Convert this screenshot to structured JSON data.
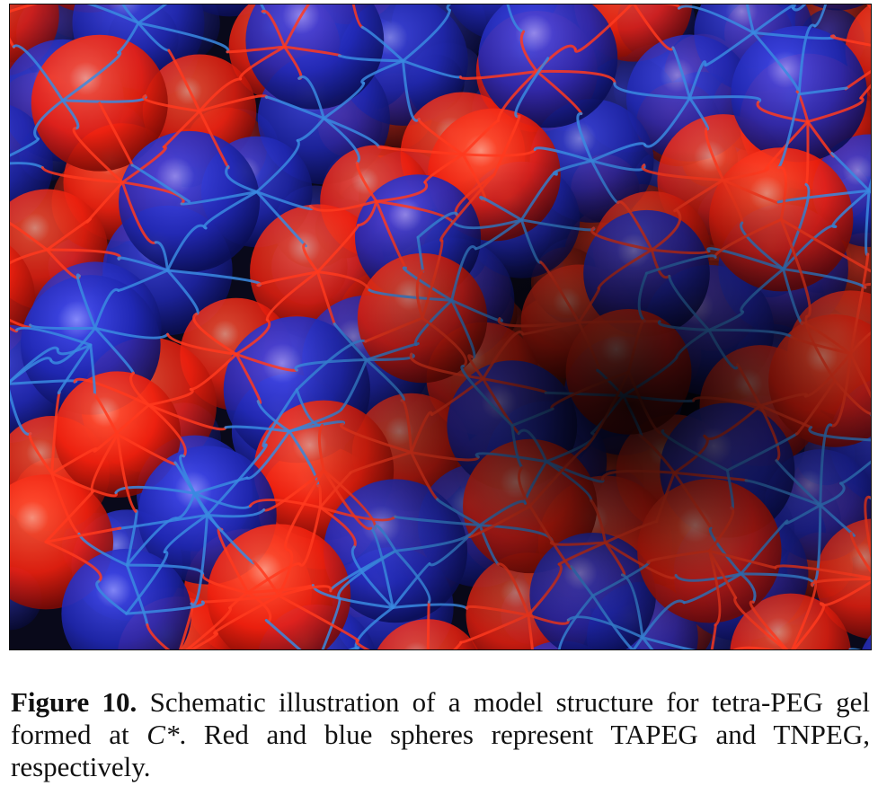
{
  "figure": {
    "label": "Figure 10.",
    "caption_part1": "Schematic illustration of a model structure for tetra-PEG gel formed at ",
    "caption_symbol": "C*",
    "caption_part2": ". Red and blue spheres represent TAPEG and TNPEG, respectively."
  },
  "colors": {
    "red_sphere": "#ff2a14",
    "blue_sphere": "#2430c8",
    "background": "#070712"
  }
}
